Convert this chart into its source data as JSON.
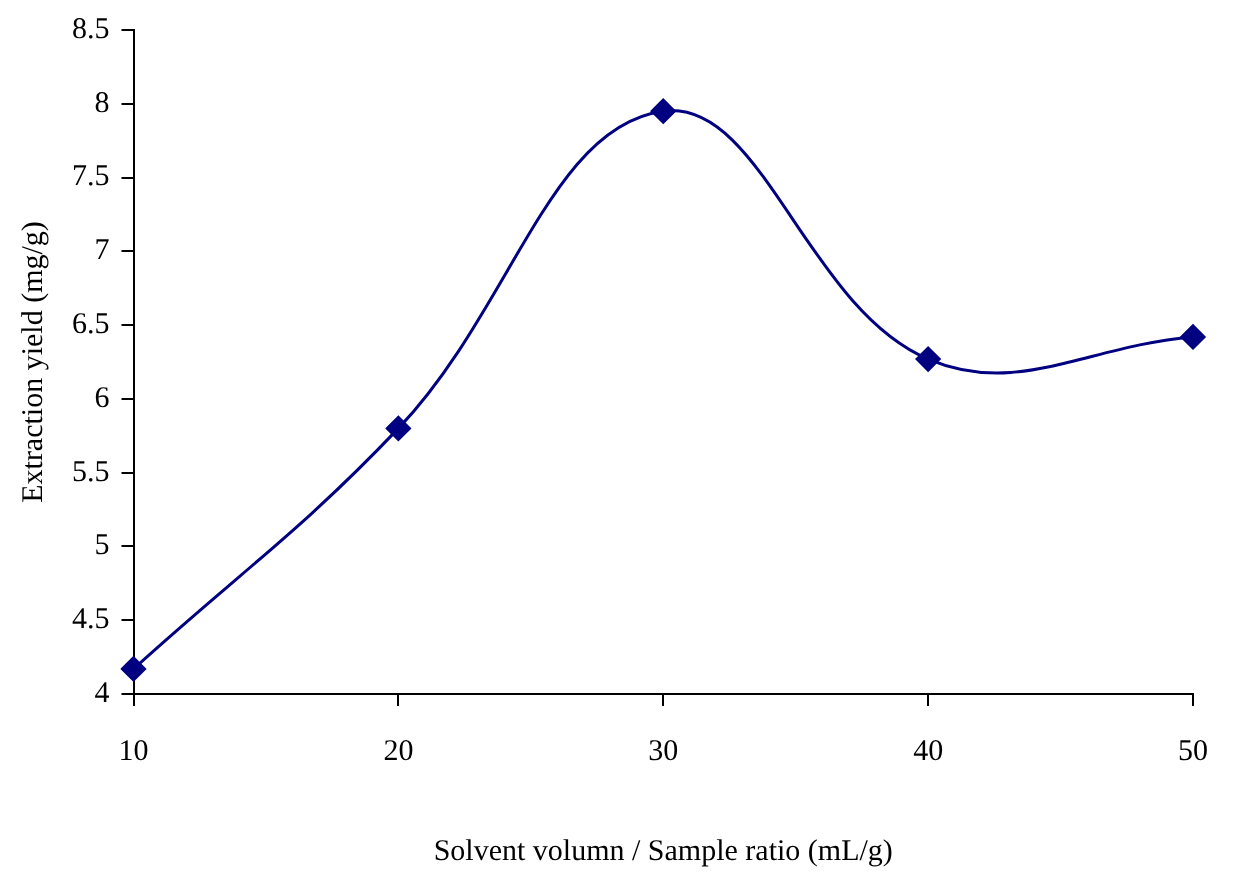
{
  "chart_data": {
    "type": "line",
    "xlabel": "Solvent volumn / Sample ratio (mL/g)",
    "ylabel": "Extraction yield (mg/g)",
    "x": [
      10,
      20,
      30,
      40,
      50
    ],
    "series": [
      {
        "color": "#000080",
        "values": [
          4.17,
          5.8,
          7.95,
          6.27,
          6.42
        ]
      }
    ],
    "xlim": [
      10,
      50
    ],
    "xticks": [
      10,
      20,
      30,
      40,
      50
    ],
    "ylim": [
      4,
      8.5
    ],
    "yticks": [
      4,
      4.5,
      5,
      5.5,
      6,
      6.5,
      7,
      7.5,
      8,
      8.5
    ],
    "grid": false,
    "legend": false,
    "marker": "diamond",
    "line_style": "solid"
  }
}
